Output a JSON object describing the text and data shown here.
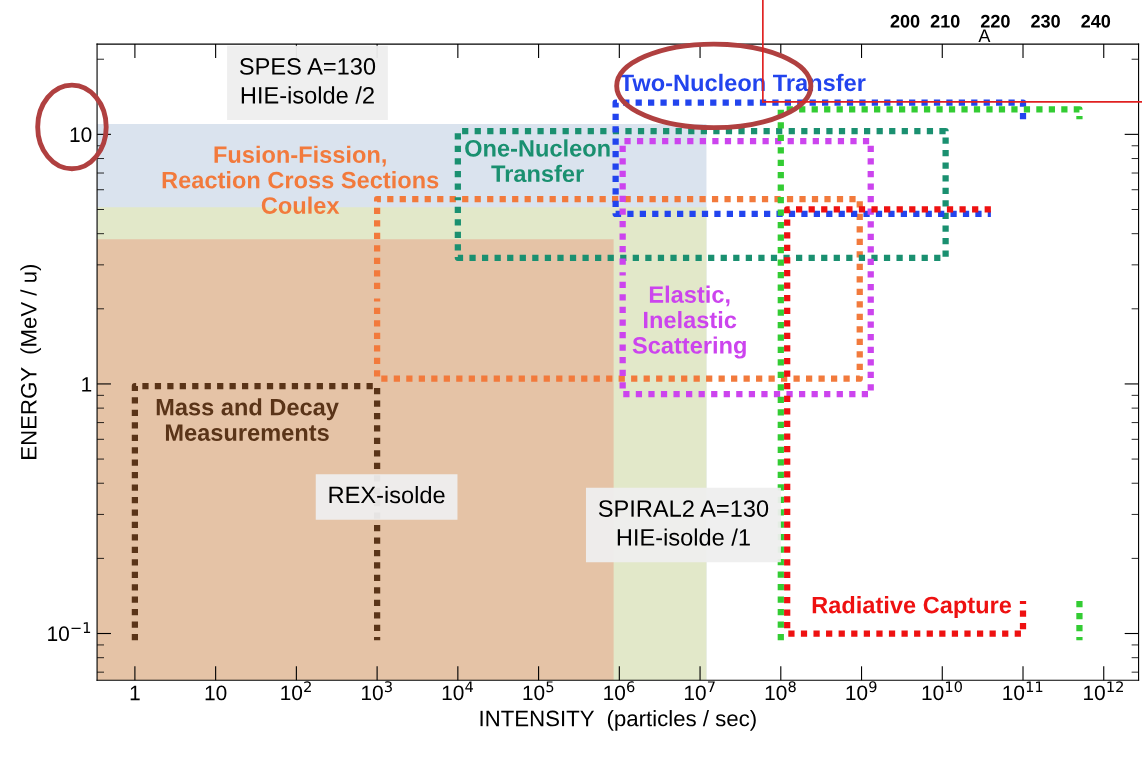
{
  "chart_data": {
    "type": "line",
    "xlabel": "INTENSITY  (particles / sec)",
    "ylabel": "ENERGY  (MeV / u)",
    "log": "xy",
    "grid": false,
    "line_style": "dotted",
    "xlim": [
      0.34,
      2700000000000.0
    ],
    "ylim": [
      0.065,
      23
    ],
    "xticks": [
      1,
      10,
      {
        "value": 100,
        "label": "10$^{2}$"
      },
      {
        "value": 1000,
        "label": "10$^{3}$"
      },
      {
        "value": 10000,
        "label": "10$^{4}$"
      },
      {
        "value": 100000,
        "label": "10$^{5}$"
      },
      {
        "value": 1000000,
        "label": "10$^{6}$"
      },
      {
        "value": 10000000,
        "label": "10$^{7}$"
      },
      {
        "value": 100000000,
        "label": "10$^{8}$"
      },
      {
        "value": 1000000000,
        "label": "10$^{9}$"
      },
      {
        "value": 10000000000,
        "label": "10$^{10}$"
      },
      {
        "value": 100000000000,
        "label": "10$^{11}$"
      },
      {
        "value": 1000000000000,
        "label": "10$^{12}$"
      }
    ],
    "yticks": [
      {
        "value": 0.1,
        "label": "10$^{−1}$"
      },
      1,
      10
    ],
    "series": [
      {
        "type": "area",
        "color": "#dae3ee",
        "x": [
          0.34,
          12000000.0
        ],
        "values": [
          11,
          11
        ]
      },
      {
        "type": "area",
        "color": "#e2e8c9",
        "x": [
          0.34,
          12000000.0
        ],
        "values": [
          5.1,
          5.1
        ]
      },
      {
        "type": "area",
        "color": "#e5c3a6",
        "x": [
          0.34,
          850000.0
        ],
        "values": [
          3.8,
          3.8
        ]
      },
      {
        "color": "#5a3418",
        "x": [
          1,
          1,
          1000,
          1000
        ],
        "values": [
          0.094,
          0.98,
          0.98,
          0.094
        ]
      },
      {
        "color": "#f27a3c",
        "x": [
          1000,
          1000,
          950000000.0,
          950000000.0,
          1000,
          1000
        ],
        "values": [
          2.4,
          5.5,
          5.5,
          1.05,
          1.05,
          2.2
        ]
      },
      {
        "color": "#1a9070",
        "x": [
          10000.0,
          10000.0,
          11000000000.0,
          11000000000.0,
          10000.0,
          10000.0
        ],
        "values": [
          6.0,
          10.3,
          10.3,
          3.2,
          3.2,
          5.6
        ]
      },
      {
        "color": "#2244ee",
        "x": [
          100000000000.0,
          100000000000.0,
          900000.0,
          900000.0,
          40000000000.0
        ],
        "values": [
          11.5,
          13.4,
          13.4,
          4.8,
          4.8
        ]
      },
      {
        "color": "#cc44ee",
        "x": [
          1100000.0,
          1100000.0,
          1300000000.0,
          1300000000.0,
          1100000.0,
          1100000.0
        ],
        "values": [
          3.0,
          9.4,
          9.4,
          0.91,
          0.91,
          2.8
        ]
      },
      {
        "color": "#ee1111",
        "x": [
          40000000000.0,
          120000000.0,
          120000000.0,
          100000000000.0,
          100000000000.0
        ],
        "values": [
          5.0,
          5.0,
          0.1,
          0.1,
          0.135
        ]
      },
      {
        "color": "#33cc33",
        "x": [
          100000000.0,
          100000000.0,
          500000000000.0,
          500000000000.0
        ],
        "values": [
          0.094,
          12.6,
          12.6,
          11.5
        ]
      },
      {
        "color": "#33cc33",
        "x": [
          500000000000.0,
          500000000000.0
        ],
        "values": [
          0.135,
          0.094
        ]
      }
    ],
    "annotations": [
      "Mass and Decay\nMeasurements",
      "Fusion-Fission,\nReaction Cross Sections\nCoulex",
      "One-Nucleon\nTransfer",
      "Two-Nucleon Transfer",
      "Elastic,\nInelastic\nScattering",
      "Radiative Capture",
      "SPES A=130\nHIE-isolde /2",
      "REX-isolde",
      "SPIRAL2 A=130\nHIE-isolde /1",
      "200  210    220    230    240",
      "A"
    ]
  }
}
